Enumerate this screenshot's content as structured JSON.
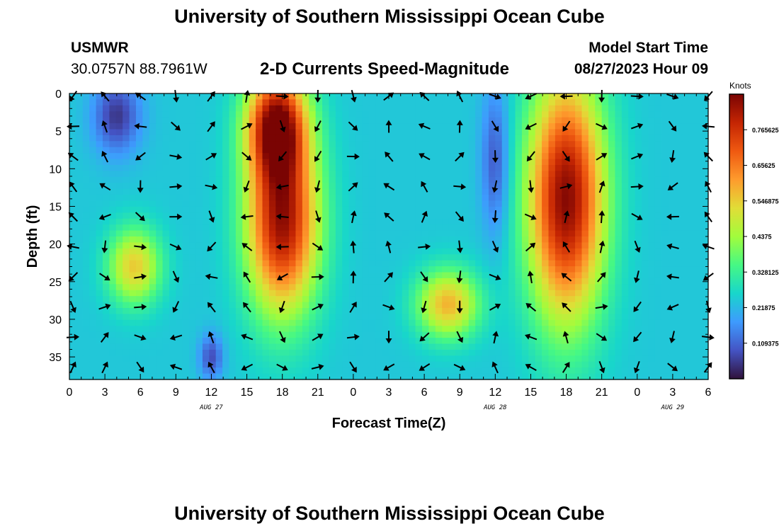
{
  "header": {
    "title": "University of Southern Mississippi Ocean Cube",
    "station": "USMWR",
    "coords": "30.0757N  88.7961W",
    "subtitle": "2-D Currents Speed-Magnitude",
    "model_label": "Model Start Time",
    "model_time": "08/27/2023 Hour 09"
  },
  "footer": {
    "title": "University of Southern Mississippi Ocean Cube"
  },
  "chart_data": {
    "type": "heatmap",
    "title": "2-D Currents Speed-Magnitude",
    "xlabel": "Forecast Time(Z)",
    "ylabel": "Depth (ft)",
    "x_ticks": [
      "0",
      "3",
      "6",
      "9",
      "12",
      "15",
      "18",
      "21",
      "0",
      "3",
      "6",
      "9",
      "12",
      "15",
      "18",
      "21",
      "0",
      "3",
      "6"
    ],
    "x_range_hours": [
      0,
      54
    ],
    "date_labels": [
      {
        "label": "AUG 27",
        "hour": 12
      },
      {
        "label": "AUG 28",
        "hour": 36
      },
      {
        "label": "AUG 29",
        "hour": 51
      }
    ],
    "y_ticks": [
      0,
      5,
      10,
      15,
      20,
      25,
      30,
      35
    ],
    "y_range_ft": [
      0,
      38
    ],
    "colorbar": {
      "title": "Knots",
      "range": [
        0,
        0.875
      ],
      "tick_labels": [
        "0.765625",
        "0.65625",
        "0.546875",
        "0.4375",
        "0.328125",
        "0.21875",
        "0.109375"
      ],
      "tick_values": [
        0.765625,
        0.65625,
        0.546875,
        0.4375,
        0.328125,
        0.21875,
        0.109375
      ],
      "colors": [
        "#30123b",
        "#4454c4",
        "#3e9bfe",
        "#18d6cb",
        "#46f884",
        "#a2fc3c",
        "#e1dd37",
        "#fe9b2d",
        "#ef5911",
        "#c42503",
        "#7a0403"
      ]
    },
    "vector_depths_ft": [
      0,
      4,
      8,
      12,
      16,
      20,
      24,
      28,
      32,
      36
    ],
    "vector_hours": [
      0,
      3,
      6,
      9,
      12,
      15,
      18,
      21,
      24,
      27,
      30,
      33,
      36,
      39,
      42,
      45,
      48,
      51,
      54
    ],
    "speed_features": [
      {
        "name": "high-core-1",
        "hour": 18,
        "depth": 17,
        "hour_spread": 3.0,
        "depth_spread": 12,
        "knots": 0.84
      },
      {
        "name": "high-core-1-upper",
        "hour": 17.5,
        "depth": 4,
        "hour_spread": 2.5,
        "depth_spread": 7,
        "knots": 0.8
      },
      {
        "name": "high-core-2",
        "hour": 42,
        "depth": 14,
        "hour_spread": 3.2,
        "depth_spread": 16,
        "knots": 0.86
      },
      {
        "name": "mid-blob-a",
        "hour": 5.5,
        "depth": 23,
        "hour_spread": 2.2,
        "depth_spread": 5,
        "knots": 0.55
      },
      {
        "name": "mid-blob-b",
        "hour": 32,
        "depth": 28,
        "hour_spread": 2.6,
        "depth_spread": 4.5,
        "knots": 0.58
      },
      {
        "name": "low-a",
        "hour": 4,
        "depth": 3,
        "hour_spread": 2.0,
        "depth_spread": 5,
        "knots": 0.05
      },
      {
        "name": "low-b",
        "hour": 12,
        "depth": 35,
        "hour_spread": 1.0,
        "depth_spread": 3,
        "knots": 0.08
      },
      {
        "name": "low-c",
        "hour": 36,
        "depth": 9,
        "hour_spread": 1.2,
        "depth_spread": 10,
        "knots": 0.09
      }
    ]
  }
}
